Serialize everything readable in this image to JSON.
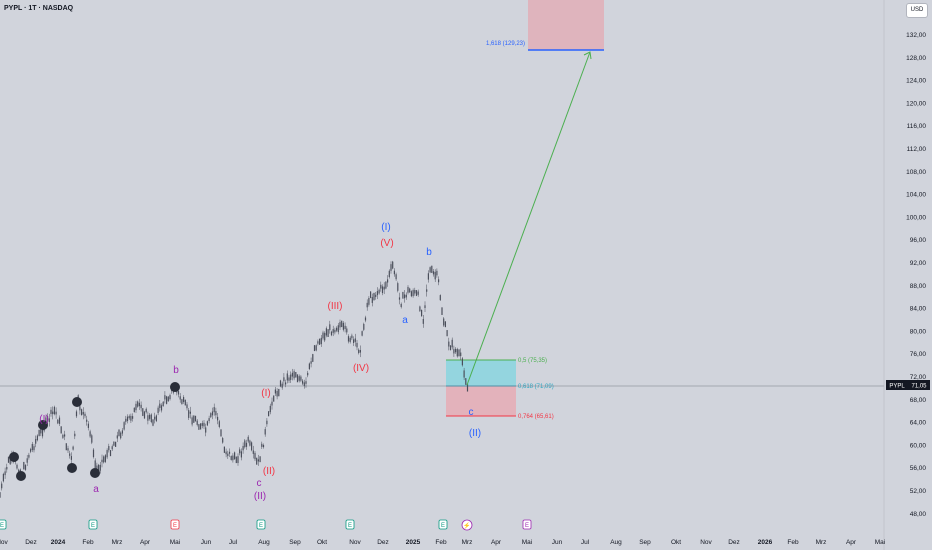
{
  "header": {
    "symbol_title": "PYPL · 1T · NASDAQ",
    "currency_button": "USD"
  },
  "price_axis": {
    "ticks": [
      "132,00",
      "128,00",
      "124,00",
      "120,00",
      "116,00",
      "112,00",
      "108,00",
      "104,00",
      "100,00",
      "96,00",
      "92,00",
      "88,00",
      "84,00",
      "80,00",
      "76,00",
      "72,00",
      "68,00",
      "64,00",
      "60,00",
      "56,00",
      "52,00",
      "48,00"
    ]
  },
  "time_axis": {
    "ticks": [
      "Nov",
      "Dez",
      "2024",
      "Feb",
      "Mrz",
      "Apr",
      "Mai",
      "Jun",
      "Jul",
      "Aug",
      "Sep",
      "Okt",
      "Nov",
      "Dez",
      "2025",
      "Feb",
      "Mrz",
      "Apr",
      "Mai",
      "Jun",
      "Jul",
      "Aug",
      "Sep",
      "Okt",
      "Nov",
      "Dez",
      "2026",
      "Feb",
      "Mrz",
      "Apr",
      "Mai"
    ]
  },
  "price_label": {
    "symbol": "PYPL",
    "value": "71,05"
  },
  "fib_levels": {
    "top": "1,618 (129,23)",
    "l05": "0,5 (75,35)",
    "l0618": "0,618 (71,09)",
    "l0764": "0,764 (65,61)"
  },
  "wave_labels": {
    "I_blue": "(I)",
    "V_red": "(V)",
    "b_blue": "b",
    "a_blue": "a",
    "III_red": "(III)",
    "IV_red": "(IV)",
    "c_blue": "c",
    "II_blue": "(II)",
    "b_purple": "b",
    "I_red": "(I)",
    "II_red": "(II)",
    "c_purple": "c",
    "II_purple": "(II)",
    "a_purple": "a",
    "I_purple": "(I)"
  },
  "event_markers": [
    "E",
    "E",
    "E",
    "E",
    "E",
    "E",
    "E"
  ],
  "colors": {
    "background": "#d1d4dc",
    "candle": "#4a4e5a",
    "blue": "#2962ff",
    "red": "#f23645",
    "purple": "#9c27b0",
    "green": "#4caf50",
    "teal_zone": "#7fd6e0",
    "pink_zone": "#e8a7b0"
  }
}
